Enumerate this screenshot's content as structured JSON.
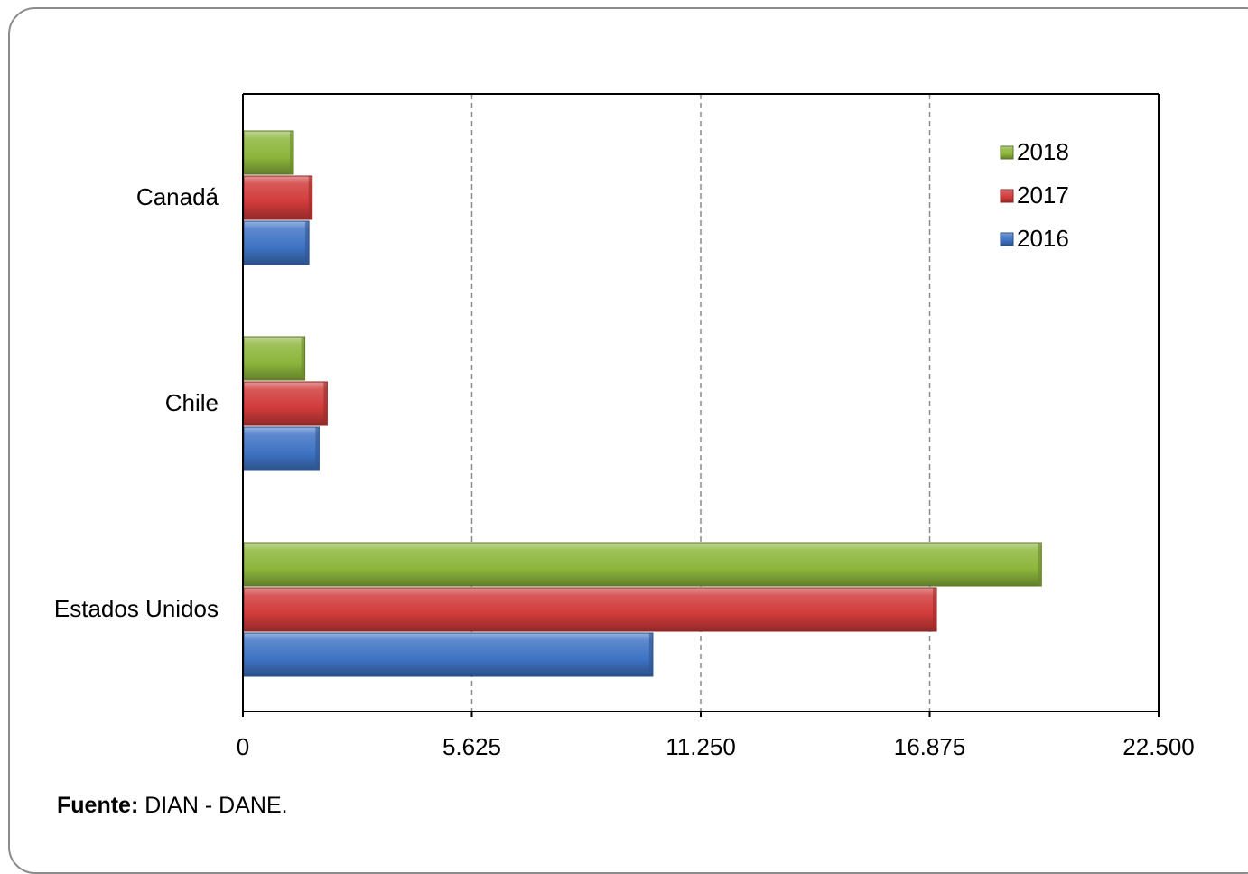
{
  "chart_data": {
    "type": "bar",
    "orientation": "horizontal",
    "categories": [
      "Estados Unidos",
      "Chile",
      "Canadá"
    ],
    "series": [
      {
        "name": "2016",
        "values": [
          10050,
          1850,
          1600
        ],
        "color": "#3f73c4"
      },
      {
        "name": "2017",
        "values": [
          17020,
          2050,
          1680
        ],
        "color": "#d13b3b"
      },
      {
        "name": "2018",
        "values": [
          19600,
          1500,
          1220
        ],
        "color": "#8db63c"
      }
    ],
    "x_ticks": [
      "0",
      "5.625",
      "11.250",
      "16.875",
      "22.500"
    ],
    "xlim": [
      0,
      22500
    ],
    "grid": "vertical dashed",
    "legend_position": "top-right",
    "legend_order": [
      "2018",
      "2017",
      "2016"
    ]
  },
  "source": {
    "label": "Fuente:",
    "text": " DIAN - DANE."
  }
}
